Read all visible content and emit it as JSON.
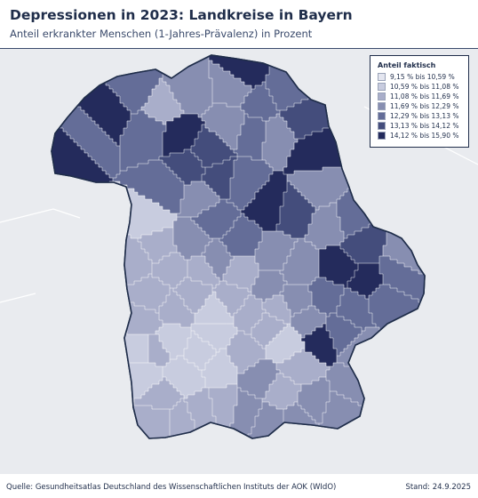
{
  "header": {
    "title": "Depressionen in 2023: Landkreise in Bayern",
    "subtitle": "Anteil erkrankter Menschen (1-Jahres-Prävalenz) in Prozent"
  },
  "legend": {
    "title": "Anteil faktisch",
    "classes": [
      {
        "label": "9,15 % bis 10,59 %",
        "color": "#e4e6f0"
      },
      {
        "label": "10,59 % bis 11,08 %",
        "color": "#c8ccdf"
      },
      {
        "label": "11,08 % bis 11,69 %",
        "color": "#a9aeca"
      },
      {
        "label": "11,69 % bis 12,29 %",
        "color": "#878eb1"
      },
      {
        "label": "12,29 % bis 13,13 %",
        "color": "#646d98"
      },
      {
        "label": "13,13 % bis 14,12 %",
        "color": "#444d7c"
      },
      {
        "label": "14,12 % bis 15,90 %",
        "color": "#242b5c"
      }
    ]
  },
  "colors": {
    "map_background": "#e9ebef",
    "region_border": "#ffffff",
    "state_outline": "#1f2d4a",
    "header_rule": "#3a4a6b"
  },
  "footer": {
    "source": "Quelle: Gesundheitsatlas Deutschland des Wissenschaftlichen Instituts der AOK (WIdO)",
    "date": "Stand: 24.9.2025"
  }
}
